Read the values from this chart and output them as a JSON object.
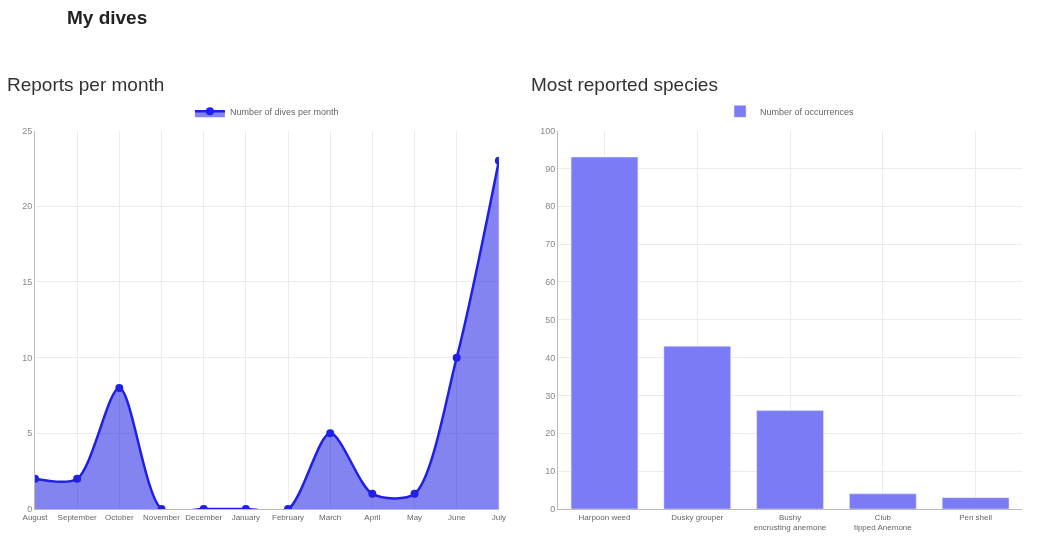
{
  "chart_data": [
    {
      "type": "area",
      "title": "Reports per month",
      "annotations": [
        "My dives"
      ],
      "categories": [
        "August",
        "September",
        "October",
        "November",
        "December",
        "January",
        "February",
        "March",
        "April",
        "May",
        "June",
        "July"
      ],
      "series": [
        {
          "name": "Number of dives per month",
          "color": "#1f1fe6",
          "values": [
            2,
            2,
            8,
            0,
            0,
            0,
            0,
            5,
            1,
            1,
            10,
            23
          ]
        }
      ],
      "ylim": [
        0,
        25
      ],
      "yticks": [
        0,
        5,
        10,
        15,
        20,
        25
      ],
      "grid": true,
      "legend": "top",
      "marker": "circle",
      "line_style": "solid"
    },
    {
      "type": "bar",
      "title": "Most reported species",
      "categories": [
        "Harpoon weed",
        "Dusky grouper",
        "Bushy encrusting anemone",
        "Club tipped Anemone",
        "Pen shell"
      ],
      "series": [
        {
          "name": "Number of occurrences",
          "color": "#7b7bf5",
          "values": [
            93,
            43,
            26,
            4,
            3
          ]
        }
      ],
      "ylim": [
        0,
        100
      ],
      "yticks": [
        0,
        10,
        20,
        30,
        40,
        50,
        60,
        70,
        80,
        90,
        100
      ],
      "grid": true,
      "legend": "top"
    }
  ]
}
